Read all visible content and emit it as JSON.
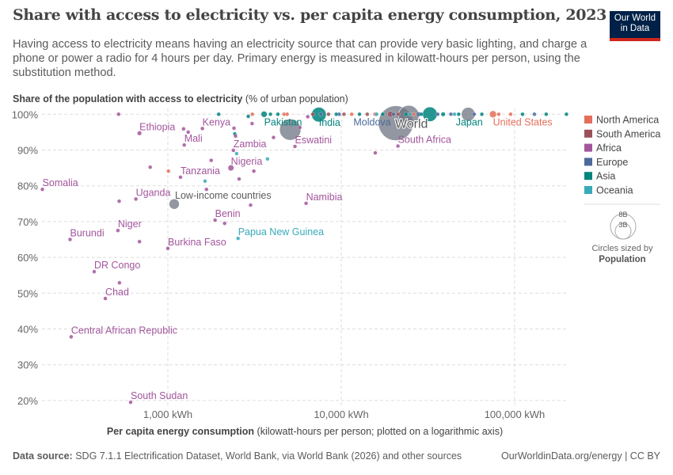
{
  "header": {
    "title": "Share with access to electricity vs. per capita energy consumption, 2023",
    "subtitle": "Having access to electricity means having an electricity source that can provide very basic lighting, and charge a phone or power a radio for 4 hours per day. Primary energy is measured in kilowatt-hours per person, using the substitution method.",
    "logo_line1": "Our World",
    "logo_line2": "in Data"
  },
  "footer": {
    "source_label": "Data source:",
    "source_text": "SDG 7.1.1 Electrification Dataset, World Bank, via World Bank (2026) and other sources",
    "right": "OurWorldinData.org/energy | CC BY"
  },
  "chart_data": {
    "type": "scatter",
    "title": "Share with access to electricity vs. per capita energy consumption, 2023",
    "ylabel_bold": "Share of the population with access to electricity",
    "ylabel_rest": "(% of urban population)",
    "xlabel_bold": "Per capita energy consumption",
    "xlabel_rest": "(kilowatt-hours per person; plotted on a logarithmic axis)",
    "x_scale": "log",
    "xlim": [
      185,
      200000
    ],
    "ylim": [
      18,
      101
    ],
    "x_ticks": [
      {
        "v": 1000,
        "label": "1,000 kWh"
      },
      {
        "v": 10000,
        "label": "10,000 kWh"
      },
      {
        "v": 100000,
        "label": "100,000 kWh"
      }
    ],
    "y_ticks": [
      {
        "v": 20,
        "label": "20%"
      },
      {
        "v": 30,
        "label": "30%"
      },
      {
        "v": 40,
        "label": "40%"
      },
      {
        "v": 50,
        "label": "50%"
      },
      {
        "v": 60,
        "label": "60%"
      },
      {
        "v": 70,
        "label": "70%"
      },
      {
        "v": 80,
        "label": "80%"
      },
      {
        "v": 90,
        "label": "90%"
      },
      {
        "v": 100,
        "label": "100%"
      }
    ],
    "grid": true,
    "legend_position": "right",
    "legend": [
      {
        "name": "North America",
        "color": "#e56e5a"
      },
      {
        "name": "South America",
        "color": "#9a5057"
      },
      {
        "name": "Africa",
        "color": "#a2559c"
      },
      {
        "name": "Europe",
        "color": "#4c6a9c"
      },
      {
        "name": "Asia",
        "color": "#00847e"
      },
      {
        "name": "Oceania",
        "color": "#38aaba"
      }
    ],
    "aggregate_color": "#6d7481",
    "size_legend": {
      "big": "8B",
      "small": "3B",
      "caption": "Circles sized by",
      "variable": "Population"
    },
    "points": [
      {
        "x": 189,
        "y": 79.0,
        "r": "Africa",
        "label": "Somalia"
      },
      {
        "x": 686,
        "y": 94.7,
        "r": "Africa",
        "label": "Ethiopia",
        "pop_m": 127
      },
      {
        "x": 1582,
        "y": 96.0,
        "r": "Africa",
        "label": "Kenya"
      },
      {
        "x": 1243,
        "y": 91.4,
        "r": "Africa",
        "label": "Mali"
      },
      {
        "x": 2388,
        "y": 89.9,
        "r": "Africa",
        "label": "Zambia"
      },
      {
        "x": 2311,
        "y": 85.0,
        "r": "Africa",
        "label": "Nigeria",
        "pop_m": 224
      },
      {
        "x": 1183,
        "y": 82.4,
        "r": "Africa",
        "label": "Tanzania"
      },
      {
        "x": 654,
        "y": 76.3,
        "r": "Africa",
        "label": "Uganda"
      },
      {
        "x": 1088,
        "y": 74.9,
        "r": "Aggregate",
        "label": "Low-income countries",
        "pop_m": 700
      },
      {
        "x": 1872,
        "y": 70.4,
        "r": "Africa",
        "label": "Benin"
      },
      {
        "x": 515,
        "y": 67.5,
        "r": "Africa",
        "label": "Niger"
      },
      {
        "x": 273,
        "y": 65.0,
        "r": "Africa",
        "label": "Burundi"
      },
      {
        "x": 1000,
        "y": 62.5,
        "r": "Africa",
        "label": "Burkina Faso"
      },
      {
        "x": 2541,
        "y": 65.3,
        "r": "Oceania",
        "label": "Papua New Guinea"
      },
      {
        "x": 6269,
        "y": 75.1,
        "r": "Africa",
        "label": "Namibia"
      },
      {
        "x": 5407,
        "y": 91.0,
        "r": "Africa",
        "label": "Eswatini"
      },
      {
        "x": 376,
        "y": 56.0,
        "r": "Africa",
        "label": "DR Congo"
      },
      {
        "x": 436,
        "y": 48.5,
        "r": "Africa",
        "label": "Chad"
      },
      {
        "x": 277,
        "y": 37.8,
        "r": "Africa",
        "label": "Central African Republic"
      },
      {
        "x": 610,
        "y": 19.5,
        "r": "Africa",
        "label": "South Sudan"
      },
      {
        "x": 21230,
        "y": 91.1,
        "r": "Africa",
        "label": "South Africa"
      },
      {
        "x": 20650,
        "y": 97.5,
        "r": "Aggregate",
        "label": "World",
        "pop_m": 8000
      },
      {
        "x": 3590,
        "y": 100,
        "r": "Asia",
        "label": "Pakistan",
        "pop_m": 240
      },
      {
        "x": 7430,
        "y": 99.9,
        "r": "Asia",
        "label": "India",
        "pop_m": 1430
      },
      {
        "x": 9730,
        "y": 100,
        "r": "Europe",
        "label": "Moldova"
      },
      {
        "x": 38700,
        "y": 100,
        "r": "Asia",
        "label": "Japan",
        "pop_m": 124
      },
      {
        "x": 75000,
        "y": 100,
        "r": "North America",
        "label": "United States",
        "pop_m": 335
      },
      {
        "x": 5080,
        "y": 95.7,
        "r": "Aggregate",
        "pop_m": 3000
      },
      {
        "x": 24500,
        "y": 99.6,
        "r": "Aggregate",
        "pop_m": 2800
      },
      {
        "x": 54000,
        "y": 100,
        "r": "Aggregate",
        "pop_m": 1250
      },
      {
        "x": 32440,
        "y": 100,
        "r": "Asia",
        "pop_m": 1410
      },
      {
        "x": 520,
        "y": 100,
        "r": "Africa"
      },
      {
        "x": 1964,
        "y": 100,
        "r": "Asia"
      },
      {
        "x": 2909,
        "y": 99.4,
        "r": "Asia",
        "pop_m": 70
      },
      {
        "x": 3070,
        "y": 100,
        "r": "North America"
      },
      {
        "x": 3905,
        "y": 100,
        "r": "Asia"
      },
      {
        "x": 4310,
        "y": 100,
        "r": "Asia"
      },
      {
        "x": 4680,
        "y": 100,
        "r": "North America"
      },
      {
        "x": 4875,
        "y": 100,
        "r": "North America"
      },
      {
        "x": 3060,
        "y": 97.4,
        "r": "Africa"
      },
      {
        "x": 1232,
        "y": 95.9,
        "r": "Africa"
      },
      {
        "x": 1310,
        "y": 95.0,
        "r": "Africa"
      },
      {
        "x": 2406,
        "y": 96.1,
        "r": "Africa"
      },
      {
        "x": 2433,
        "y": 94.5,
        "r": "Asia"
      },
      {
        "x": 2458,
        "y": 93.9,
        "r": "Africa"
      },
      {
        "x": 4070,
        "y": 93.5,
        "r": "Africa"
      },
      {
        "x": 2493,
        "y": 89.0,
        "r": "Oceania"
      },
      {
        "x": 3755,
        "y": 87.5,
        "r": "Oceania"
      },
      {
        "x": 1778,
        "y": 87.1,
        "r": "Africa"
      },
      {
        "x": 791,
        "y": 85.2,
        "r": "Africa"
      },
      {
        "x": 1008,
        "y": 84.1,
        "r": "North America"
      },
      {
        "x": 3133,
        "y": 84.1,
        "r": "Africa"
      },
      {
        "x": 2576,
        "y": 81.9,
        "r": "Africa"
      },
      {
        "x": 1639,
        "y": 81.3,
        "r": "Oceania"
      },
      {
        "x": 1670,
        "y": 79.0,
        "r": "Africa"
      },
      {
        "x": 524,
        "y": 75.7,
        "r": "Africa"
      },
      {
        "x": 3000,
        "y": 74.6,
        "r": "Africa"
      },
      {
        "x": 2125,
        "y": 69.5,
        "r": "Africa"
      },
      {
        "x": 686,
        "y": 64.4,
        "r": "Africa"
      },
      {
        "x": 526,
        "y": 52.9,
        "r": "Africa"
      },
      {
        "x": 6410,
        "y": 99.3,
        "r": "Africa"
      },
      {
        "x": 5770,
        "y": 96.3,
        "r": "Africa"
      },
      {
        "x": 15710,
        "y": 89.2,
        "r": "Africa"
      },
      {
        "x": 6850,
        "y": 100,
        "r": "South America"
      },
      {
        "x": 7620,
        "y": 100,
        "r": "Europe"
      },
      {
        "x": 8440,
        "y": 100,
        "r": "South America"
      },
      {
        "x": 9360,
        "y": 100,
        "r": "Asia"
      },
      {
        "x": 10370,
        "y": 100,
        "r": "South America"
      },
      {
        "x": 11490,
        "y": 100,
        "r": "North America"
      },
      {
        "x": 12740,
        "y": 100,
        "r": "Asia"
      },
      {
        "x": 14120,
        "y": 100,
        "r": "South America"
      },
      {
        "x": 15650,
        "y": 100,
        "r": "North America"
      },
      {
        "x": 17340,
        "y": 100,
        "r": "Asia"
      },
      {
        "x": 19220,
        "y": 100,
        "r": "South America",
        "pop_m": 215
      },
      {
        "x": 20000,
        "y": 100,
        "r": "Europe"
      },
      {
        "x": 21300,
        "y": 100,
        "r": "South America"
      },
      {
        "x": 23600,
        "y": 100,
        "r": "Asia"
      },
      {
        "x": 25000,
        "y": 100,
        "r": "Oceania"
      },
      {
        "x": 26160,
        "y": 100,
        "r": "North America"
      },
      {
        "x": 28000,
        "y": 100,
        "r": "Europe",
        "pop_m": 144
      },
      {
        "x": 29000,
        "y": 100,
        "r": "Asia"
      },
      {
        "x": 36000,
        "y": 100,
        "r": "Europe"
      },
      {
        "x": 42900,
        "y": 100,
        "r": "Europe"
      },
      {
        "x": 45000,
        "y": 100,
        "r": "Oceania"
      },
      {
        "x": 47560,
        "y": 100,
        "r": "Asia"
      },
      {
        "x": 58400,
        "y": 100,
        "r": "Europe"
      },
      {
        "x": 64700,
        "y": 100,
        "r": "Asia"
      },
      {
        "x": 80900,
        "y": 100,
        "r": "North America"
      },
      {
        "x": 94800,
        "y": 100,
        "r": "North America"
      },
      {
        "x": 111000,
        "y": 100,
        "r": "Asia"
      },
      {
        "x": 130000,
        "y": 100,
        "r": "Europe"
      },
      {
        "x": 152000,
        "y": 100,
        "r": "Asia"
      },
      {
        "x": 199000,
        "y": 100,
        "r": "Asia"
      },
      {
        "x": 16000,
        "y": 100,
        "r": "Oceania"
      }
    ]
  }
}
